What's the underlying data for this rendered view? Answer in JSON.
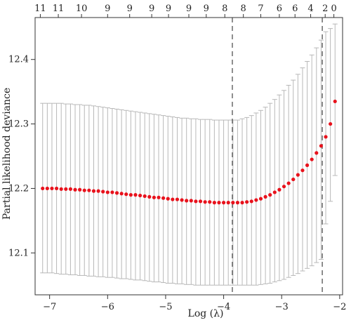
{
  "chart_data": {
    "type": "scatter",
    "xlabel": "Log (λ)",
    "ylabel": "Partial likelihood deviance",
    "xlim": [
      -7.25,
      -1.95
    ],
    "ylim": [
      12.035,
      12.465
    ],
    "x_ticks": [
      -7,
      -6,
      -5,
      -4,
      -3,
      -2
    ],
    "y_ticks": [
      12.1,
      12.2,
      12.3,
      12.4
    ],
    "top_ticks": [
      {
        "x": -7.16,
        "label": "11"
      },
      {
        "x": -6.85,
        "label": "11"
      },
      {
        "x": -6.45,
        "label": "10"
      },
      {
        "x": -6.0,
        "label": "9"
      },
      {
        "x": -5.62,
        "label": "9"
      },
      {
        "x": -5.24,
        "label": "9"
      },
      {
        "x": -4.95,
        "label": "9"
      },
      {
        "x": -4.6,
        "label": "9"
      },
      {
        "x": -4.3,
        "label": "9"
      },
      {
        "x": -3.98,
        "label": "8"
      },
      {
        "x": -3.66,
        "label": "8"
      },
      {
        "x": -3.36,
        "label": "7"
      },
      {
        "x": -3.04,
        "label": "6"
      },
      {
        "x": -2.77,
        "label": "6"
      },
      {
        "x": -2.5,
        "label": "4"
      },
      {
        "x": -2.25,
        "label": "2"
      },
      {
        "x": -2.1,
        "label": "0"
      }
    ],
    "vlines": [
      -3.85,
      -2.3
    ],
    "x": [
      -7.12,
      -7.04,
      -6.96,
      -6.88,
      -6.8,
      -6.72,
      -6.64,
      -6.56,
      -6.48,
      -6.4,
      -6.32,
      -6.24,
      -6.16,
      -6.08,
      -6.0,
      -5.92,
      -5.84,
      -5.76,
      -5.68,
      -5.6,
      -5.52,
      -5.44,
      -5.36,
      -5.28,
      -5.2,
      -5.12,
      -5.04,
      -4.96,
      -4.88,
      -4.8,
      -4.72,
      -4.64,
      -4.56,
      -4.48,
      -4.4,
      -4.32,
      -4.24,
      -4.16,
      -4.08,
      -4.0,
      -3.92,
      -3.84,
      -3.76,
      -3.68,
      -3.6,
      -3.52,
      -3.44,
      -3.36,
      -3.28,
      -3.2,
      -3.12,
      -3.04,
      -2.96,
      -2.88,
      -2.8,
      -2.72,
      -2.64,
      -2.56,
      -2.48,
      -2.4,
      -2.32,
      -2.24,
      -2.16,
      -2.08
    ],
    "mean": [
      12.2,
      12.2,
      12.2,
      12.2,
      12.199,
      12.199,
      12.199,
      12.198,
      12.198,
      12.197,
      12.197,
      12.196,
      12.196,
      12.195,
      12.194,
      12.194,
      12.193,
      12.192,
      12.191,
      12.19,
      12.19,
      12.189,
      12.188,
      12.187,
      12.186,
      12.186,
      12.185,
      12.184,
      12.183,
      12.183,
      12.182,
      12.181,
      12.181,
      12.18,
      12.18,
      12.179,
      12.179,
      12.178,
      12.178,
      12.178,
      12.178,
      12.178,
      12.178,
      12.178,
      12.179,
      12.18,
      12.182,
      12.184,
      12.187,
      12.19,
      12.194,
      12.198,
      12.203,
      12.208,
      12.214,
      12.221,
      12.228,
      12.236,
      12.245,
      12.255,
      12.266,
      12.28,
      12.3,
      12.335
    ],
    "upper": [
      12.332,
      12.332,
      12.332,
      12.332,
      12.332,
      12.331,
      12.331,
      12.33,
      12.33,
      12.329,
      12.329,
      12.328,
      12.327,
      12.326,
      12.325,
      12.324,
      12.323,
      12.322,
      12.321,
      12.32,
      12.319,
      12.318,
      12.317,
      12.316,
      12.315,
      12.314,
      12.313,
      12.312,
      12.311,
      12.31,
      12.309,
      12.309,
      12.308,
      12.308,
      12.307,
      12.307,
      12.307,
      12.306,
      12.306,
      12.306,
      12.306,
      12.306,
      12.306,
      12.308,
      12.31,
      12.313,
      12.317,
      12.321,
      12.326,
      12.332,
      12.338,
      12.345,
      12.352,
      12.36,
      12.368,
      12.377,
      12.387,
      12.397,
      12.407,
      12.418,
      12.43,
      12.443,
      12.448,
      12.455
    ],
    "lower": [
      12.069,
      12.069,
      12.069,
      12.068,
      12.067,
      12.067,
      12.066,
      12.066,
      12.065,
      12.065,
      12.064,
      12.064,
      12.063,
      12.063,
      12.062,
      12.062,
      12.061,
      12.06,
      12.06,
      12.059,
      12.058,
      12.058,
      12.057,
      12.056,
      12.055,
      12.055,
      12.054,
      12.053,
      12.053,
      12.052,
      12.052,
      12.051,
      12.051,
      12.05,
      12.05,
      12.05,
      12.05,
      12.05,
      12.05,
      12.05,
      12.05,
      12.05,
      12.05,
      12.05,
      12.05,
      12.05,
      12.05,
      12.051,
      12.052,
      12.053,
      12.055,
      12.057,
      12.059,
      12.062,
      12.065,
      12.068,
      12.072,
      12.076,
      12.08,
      12.085,
      12.09,
      12.145,
      12.18,
      12.22
    ]
  },
  "colors": {
    "point": "#e8121c",
    "error_bar": "#b8b8b8",
    "axis": "#333333",
    "reference_line": "#444444"
  }
}
